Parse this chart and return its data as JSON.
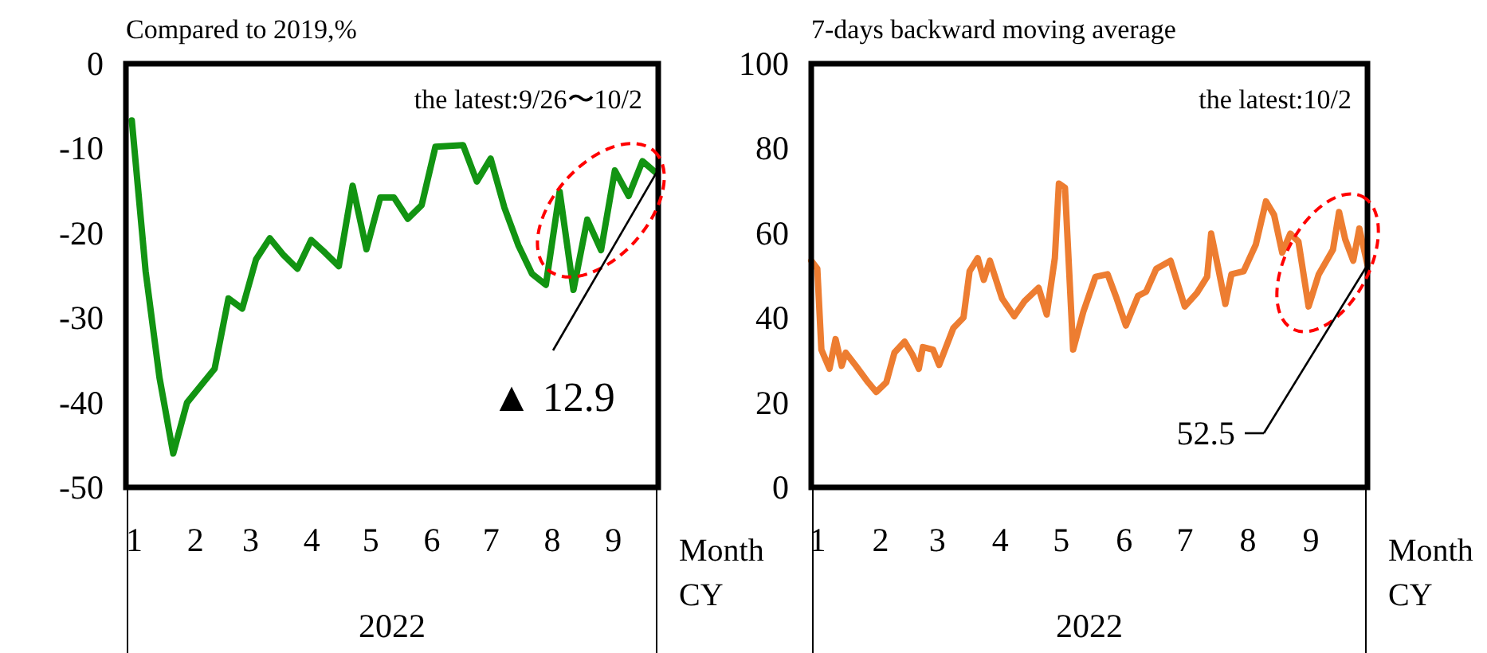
{
  "chart_data": [
    {
      "type": "line",
      "title": "Compared to 2019,%",
      "xlabel": "Month\nCY",
      "x": [
        "2022-01-03",
        "2022-01-10",
        "2022-01-17",
        "2022-01-24",
        "2022-01-31",
        "2022-02-07",
        "2022-02-14",
        "2022-02-21",
        "2022-02-28",
        "2022-03-07",
        "2022-03-14",
        "2022-03-21",
        "2022-03-28",
        "2022-04-04",
        "2022-04-11",
        "2022-04-18",
        "2022-04-25",
        "2022-05-02",
        "2022-05-09",
        "2022-05-16",
        "2022-05-23",
        "2022-05-30",
        "2022-06-06",
        "2022-06-13",
        "2022-06-20",
        "2022-06-27",
        "2022-07-04",
        "2022-07-11",
        "2022-07-18",
        "2022-07-25",
        "2022-08-01",
        "2022-08-08",
        "2022-08-15",
        "2022-08-22",
        "2022-08-29",
        "2022-09-05",
        "2022-09-12",
        "2022-09-19",
        "2022-09-26"
      ],
      "series": [
        {
          "color": "#129412",
          "values": [
            -6.7,
            -24.5,
            -37,
            -46,
            -40,
            -38,
            -36,
            -27.7,
            -28.9,
            -23.1,
            -20.6,
            -22.6,
            -24.2,
            -20.8,
            -22.3,
            -23.9,
            -14.4,
            -21.9,
            -15.8,
            -15.8,
            -18.3,
            -16.7,
            -9.8,
            -9.7,
            -9.6,
            -13.9,
            -11.2,
            -17,
            -21.4,
            -24.8,
            -26.1,
            -15.1,
            -26.7,
            -18.4,
            -22,
            -12.6,
            -15.6,
            -11.5,
            -12.9
          ]
        }
      ],
      "xlim": [
        "2021-12-31",
        "2022-09-27"
      ],
      "xticks": [
        {
          "value": "2022-01-01",
          "label": "1"
        },
        {
          "value": "2022-02-01",
          "label": "2"
        },
        {
          "value": "2022-03-01",
          "label": "3"
        },
        {
          "value": "2022-04-01",
          "label": "4"
        },
        {
          "value": "2022-05-01",
          "label": "5"
        },
        {
          "value": "2022-06-01",
          "label": "6"
        },
        {
          "value": "2022-07-01",
          "label": "7"
        },
        {
          "value": "2022-08-01",
          "label": "8"
        },
        {
          "value": "2022-09-01",
          "label": "9"
        }
      ],
      "ylim": [
        -50,
        0
      ],
      "yticks": [
        -50,
        -40,
        -30,
        -20,
        -10,
        0
      ],
      "annotations": [
        {
          "text": "▲ 12.9",
          "x": "2022-09-26",
          "y": -12.9
        },
        "the latest:9/26〜10/2",
        "2022"
      ]
    },
    {
      "type": "line",
      "title": "7-days backward moving average",
      "xlabel": "Month\nCY",
      "x": [
        "2022-01-01",
        "2022-01-04",
        "2022-01-06",
        "2022-01-10",
        "2022-01-13",
        "2022-01-16",
        "2022-01-18",
        "2022-01-23",
        "2022-01-29",
        "2022-02-02",
        "2022-02-07",
        "2022-02-11",
        "2022-02-16",
        "2022-02-20",
        "2022-02-23",
        "2022-02-25",
        "2022-03-02",
        "2022-03-05",
        "2022-03-12",
        "2022-03-17",
        "2022-03-20",
        "2022-03-24",
        "2022-03-27",
        "2022-03-30",
        "2022-04-05",
        "2022-04-11",
        "2022-04-16",
        "2022-04-23",
        "2022-04-27",
        "2022-05-01",
        "2022-05-03",
        "2022-05-06",
        "2022-05-10",
        "2022-05-15",
        "2022-05-21",
        "2022-05-27",
        "2022-05-31",
        "2022-06-05",
        "2022-06-11",
        "2022-06-15",
        "2022-06-20",
        "2022-06-27",
        "2022-07-04",
        "2022-07-10",
        "2022-07-15",
        "2022-07-17",
        "2022-07-20",
        "2022-07-24",
        "2022-07-27",
        "2022-08-02",
        "2022-08-08",
        "2022-08-13",
        "2022-08-17",
        "2022-08-21",
        "2022-08-25",
        "2022-08-29",
        "2022-09-03",
        "2022-09-08",
        "2022-09-15",
        "2022-09-18",
        "2022-09-21",
        "2022-09-25",
        "2022-09-28",
        "2022-10-02"
      ],
      "series": [
        {
          "color": "#ed7d31",
          "values": [
            53.5,
            51.6,
            32.5,
            28,
            35,
            28.7,
            31.8,
            28.7,
            24.8,
            22.5,
            24.8,
            31.8,
            34.4,
            31.2,
            28,
            33.1,
            32.5,
            28.9,
            37.6,
            40.1,
            51,
            54.1,
            49,
            53.5,
            44.6,
            40.4,
            43.9,
            47.1,
            40.8,
            54.1,
            71.7,
            70.7,
            32.5,
            41.4,
            49.7,
            50.3,
            45.2,
            38.2,
            45.2,
            46.2,
            51.6,
            53.5,
            42.7,
            45.9,
            49.7,
            59.9,
            52.9,
            43.3,
            50.3,
            51,
            57.3,
            67.5,
            64.3,
            55.4,
            59.9,
            58,
            42.7,
            50.3,
            56.1,
            65,
            58.6,
            53.5,
            61.1,
            52.5
          ]
        }
      ],
      "xlim": [
        "2022-01-01",
        "2022-10-02"
      ],
      "xticks": [
        {
          "value": "2022-01-01",
          "label": "1"
        },
        {
          "value": "2022-02-01",
          "label": "2"
        },
        {
          "value": "2022-03-01",
          "label": "3"
        },
        {
          "value": "2022-04-01",
          "label": "4"
        },
        {
          "value": "2022-05-01",
          "label": "5"
        },
        {
          "value": "2022-06-01",
          "label": "6"
        },
        {
          "value": "2022-07-01",
          "label": "7"
        },
        {
          "value": "2022-08-01",
          "label": "8"
        },
        {
          "value": "2022-09-01",
          "label": "9"
        }
      ],
      "ylim": [
        0,
        100
      ],
      "yticks": [
        0,
        20,
        40,
        60,
        80,
        100
      ],
      "annotations": [
        {
          "text": "52.5",
          "x": "2022-10-02",
          "y": 52.5
        },
        "the latest:10/2",
        "2022"
      ]
    }
  ]
}
